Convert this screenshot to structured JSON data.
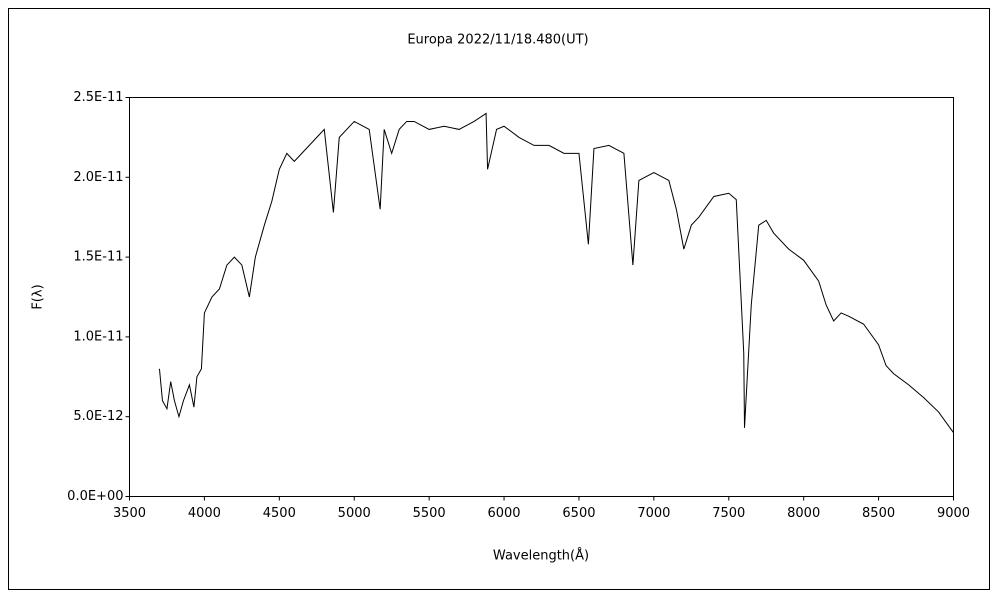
{
  "chart_data": {
    "type": "line",
    "title": "Europa    2022/11/18.480(UT)",
    "x_label": "Wavelength(Å)",
    "y_label": "F(λ)",
    "color": "#000000",
    "x": [
      3700,
      3720,
      3750,
      3775,
      3800,
      3830,
      3860,
      3900,
      3930,
      3950,
      3980,
      4000,
      4050,
      4100,
      4150,
      4200,
      4250,
      4300,
      4340,
      4400,
      4450,
      4500,
      4550,
      4600,
      4650,
      4700,
      4750,
      4800,
      4861,
      4900,
      4950,
      5000,
      5100,
      5173,
      5200,
      5250,
      5300,
      5350,
      5400,
      5500,
      5600,
      5700,
      5800,
      5880,
      5890,
      5950,
      6000,
      6100,
      6200,
      6300,
      6400,
      6500,
      6563,
      6600,
      6700,
      6800,
      6860,
      6900,
      7000,
      7100,
      7150,
      7200,
      7250,
      7300,
      7400,
      7500,
      7550,
      7600,
      7605,
      7650,
      7700,
      7750,
      7800,
      7900,
      8000,
      8100,
      8150,
      8200,
      8250,
      8300,
      8400,
      8500,
      8550,
      8600,
      8700,
      8800,
      8900,
      9000
    ],
    "values": [
      8e-12,
      6e-12,
      5.5e-12,
      7.2e-12,
      6e-12,
      5e-12,
      6e-12,
      7e-12,
      5.6e-12,
      7.5e-12,
      8e-12,
      1.15e-11,
      1.25e-11,
      1.3e-11,
      1.45e-11,
      1.5e-11,
      1.45e-11,
      1.25e-11,
      1.5e-11,
      1.7e-11,
      1.85e-11,
      2.05e-11,
      2.15e-11,
      2.1e-11,
      2.15e-11,
      2.2e-11,
      2.25e-11,
      2.3e-11,
      1.78e-11,
      2.25e-11,
      2.3e-11,
      2.35e-11,
      2.3e-11,
      1.8e-11,
      2.3e-11,
      2.15e-11,
      2.3e-11,
      2.35e-11,
      2.35e-11,
      2.3e-11,
      2.32e-11,
      2.3e-11,
      2.35e-11,
      2.4e-11,
      2.05e-11,
      2.3e-11,
      2.32e-11,
      2.25e-11,
      2.2e-11,
      2.2e-11,
      2.15e-11,
      2.15e-11,
      1.58e-11,
      2.18e-11,
      2.2e-11,
      2.15e-11,
      1.45e-11,
      1.98e-11,
      2.03e-11,
      1.98e-11,
      1.8e-11,
      1.55e-11,
      1.7e-11,
      1.75e-11,
      1.88e-11,
      1.9e-11,
      1.86e-11,
      9e-12,
      4.3e-12,
      1.2e-11,
      1.7e-11,
      1.73e-11,
      1.65e-11,
      1.55e-11,
      1.48e-11,
      1.35e-11,
      1.2e-11,
      1.1e-11,
      1.15e-11,
      1.13e-11,
      1.08e-11,
      9.5e-12,
      8.2e-12,
      7.7e-12,
      7e-12,
      6.2e-12,
      5.3e-12,
      4e-12
    ],
    "xlim": [
      3500,
      9000
    ],
    "xticks": [
      3500,
      4000,
      4500,
      5000,
      5500,
      6000,
      6500,
      7000,
      7500,
      8000,
      8500,
      9000
    ],
    "ylim": [
      0,
      2.5e-11
    ],
    "yticks": [
      {
        "value": 0,
        "label": "0.0E+00"
      },
      {
        "value": 5e-12,
        "label": "5.0E-12"
      },
      {
        "value": 1e-11,
        "label": "1.0E-11"
      },
      {
        "value": 1.5e-11,
        "label": "1.5E-11"
      },
      {
        "value": 2e-11,
        "label": "2.0E-11"
      },
      {
        "value": 2.5e-11,
        "label": "2.5E-11"
      }
    ]
  }
}
